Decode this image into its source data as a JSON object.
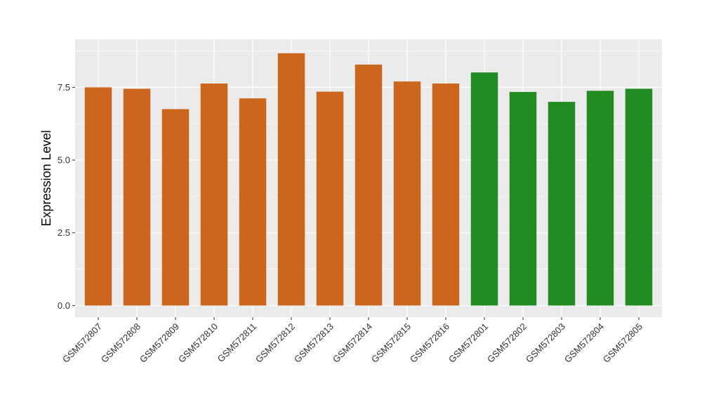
{
  "chart_data": {
    "type": "bar",
    "title": "",
    "xlabel": "",
    "ylabel": "Expression Level",
    "categories": [
      "GSM572807",
      "GSM572808",
      "GSM572809",
      "GSM572810",
      "GSM572811",
      "GSM572812",
      "GSM572813",
      "GSM572814",
      "GSM572815",
      "GSM572816",
      "GSM572801",
      "GSM572802",
      "GSM572803",
      "GSM572804",
      "GSM572805"
    ],
    "values": [
      7.5,
      7.45,
      6.75,
      7.63,
      7.12,
      8.67,
      7.35,
      8.28,
      7.7,
      7.63,
      8.01,
      7.34,
      7.0,
      7.38,
      7.45
    ],
    "bar_colors": [
      "#cd661d",
      "#cd661d",
      "#cd661d",
      "#cd661d",
      "#cd661d",
      "#cd661d",
      "#cd661d",
      "#cd661d",
      "#cd661d",
      "#cd661d",
      "#228b22",
      "#228b22",
      "#228b22",
      "#228b22",
      "#228b22"
    ],
    "ylim": [
      -0.4,
      9.15
    ],
    "yticks": [
      0,
      2.5,
      5,
      7.5
    ],
    "ytick_labels": [
      "0.0",
      "2.5",
      "5.0",
      "7.5"
    ],
    "grid": true,
    "legend": "none",
    "panel_background": "#ebebeb",
    "grid_color": "#ffffff"
  }
}
